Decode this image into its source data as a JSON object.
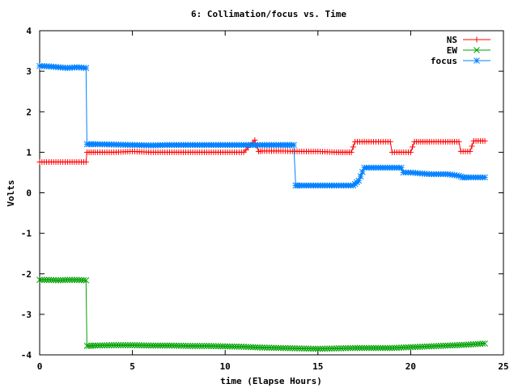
{
  "chart_data": {
    "type": "line",
    "title": "6: Collimation/focus vs. Time",
    "xlabel": "time (Elapse Hours)",
    "ylabel": "Volts",
    "xlim": [
      0,
      25
    ],
    "ylim": [
      -4,
      4
    ],
    "xticks": [
      0,
      5,
      10,
      15,
      20,
      25
    ],
    "yticks": [
      -4,
      -3,
      -2,
      -1,
      0,
      1,
      2,
      3,
      4
    ],
    "grid": false,
    "legend_position": "top-right",
    "series": [
      {
        "name": "NS",
        "color": "#ff0000",
        "marker": "plus",
        "points": [
          [
            0,
            0.76
          ],
          [
            0.5,
            0.76
          ],
          [
            1.0,
            0.76
          ],
          [
            1.5,
            0.76
          ],
          [
            2.0,
            0.76
          ],
          [
            2.5,
            0.76
          ],
          [
            2.55,
            1.0
          ],
          [
            3,
            1.0
          ],
          [
            4,
            1.0
          ],
          [
            5,
            1.02
          ],
          [
            6,
            1.0
          ],
          [
            7,
            1.0
          ],
          [
            8,
            1.0
          ],
          [
            9,
            1.0
          ],
          [
            10,
            1.0
          ],
          [
            11,
            1.0
          ],
          [
            11.6,
            1.3
          ],
          [
            11.8,
            1.02
          ],
          [
            12,
            1.03
          ],
          [
            13,
            1.03
          ],
          [
            14,
            1.02
          ],
          [
            15,
            1.02
          ],
          [
            16,
            1.0
          ],
          [
            16.8,
            1.0
          ],
          [
            17,
            1.26
          ],
          [
            18,
            1.26
          ],
          [
            18.9,
            1.26
          ],
          [
            19,
            1.0
          ],
          [
            20,
            1.0
          ],
          [
            20.2,
            1.26
          ],
          [
            21,
            1.26
          ],
          [
            22,
            1.26
          ],
          [
            22.6,
            1.26
          ],
          [
            22.7,
            1.02
          ],
          [
            23.2,
            1.02
          ],
          [
            23.4,
            1.28
          ],
          [
            24,
            1.28
          ]
        ]
      },
      {
        "name": "EW",
        "color": "#00a000",
        "marker": "cross",
        "points": [
          [
            0,
            -2.15
          ],
          [
            0.5,
            -2.15
          ],
          [
            1.0,
            -2.16
          ],
          [
            1.5,
            -2.15
          ],
          [
            2.0,
            -2.15
          ],
          [
            2.5,
            -2.16
          ],
          [
            2.55,
            -3.78
          ],
          [
            3,
            -3.77
          ],
          [
            4,
            -3.76
          ],
          [
            5,
            -3.76
          ],
          [
            6,
            -3.77
          ],
          [
            7,
            -3.77
          ],
          [
            8,
            -3.78
          ],
          [
            9,
            -3.78
          ],
          [
            10,
            -3.79
          ],
          [
            11,
            -3.8
          ],
          [
            12,
            -3.82
          ],
          [
            13,
            -3.83
          ],
          [
            14,
            -3.84
          ],
          [
            15,
            -3.85
          ],
          [
            16,
            -3.84
          ],
          [
            17,
            -3.83
          ],
          [
            18,
            -3.83
          ],
          [
            19,
            -3.83
          ],
          [
            20,
            -3.81
          ],
          [
            21,
            -3.79
          ],
          [
            22,
            -3.77
          ],
          [
            23,
            -3.75
          ],
          [
            24,
            -3.72
          ]
        ]
      },
      {
        "name": "focus",
        "color": "#0080ff",
        "marker": "star",
        "points": [
          [
            0,
            3.13
          ],
          [
            0.5,
            3.12
          ],
          [
            1.0,
            3.1
          ],
          [
            1.5,
            3.08
          ],
          [
            2.0,
            3.1
          ],
          [
            2.5,
            3.08
          ],
          [
            2.55,
            1.2
          ],
          [
            3,
            1.2
          ],
          [
            4,
            1.19
          ],
          [
            5,
            1.18
          ],
          [
            6,
            1.17
          ],
          [
            7,
            1.18
          ],
          [
            8,
            1.18
          ],
          [
            9,
            1.18
          ],
          [
            10,
            1.18
          ],
          [
            11,
            1.18
          ],
          [
            12,
            1.18
          ],
          [
            13,
            1.18
          ],
          [
            13.7,
            1.18
          ],
          [
            13.8,
            0.18
          ],
          [
            14,
            0.18
          ],
          [
            15,
            0.18
          ],
          [
            16,
            0.18
          ],
          [
            16.9,
            0.18
          ],
          [
            17.2,
            0.3
          ],
          [
            17.5,
            0.62
          ],
          [
            18,
            0.62
          ],
          [
            19,
            0.62
          ],
          [
            19.5,
            0.62
          ],
          [
            19.6,
            0.5
          ],
          [
            20,
            0.5
          ],
          [
            21,
            0.46
          ],
          [
            22,
            0.46
          ],
          [
            22.6,
            0.42
          ],
          [
            22.8,
            0.38
          ],
          [
            23,
            0.38
          ],
          [
            24,
            0.38
          ]
        ]
      }
    ]
  }
}
